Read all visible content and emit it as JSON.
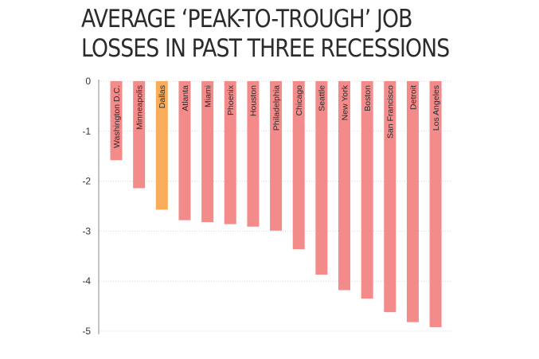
{
  "title_lines": [
    "Average ‘peak-to-trough’ job",
    "losses in past three recessions"
  ],
  "colors": {
    "bar": "#f48b8b",
    "highlight": "#f9ad5a",
    "grid": "#d7d7d7",
    "axis": "#888888"
  },
  "chart_data": {
    "type": "bar",
    "title": "Average ‘peak-to-trough’ job losses in past three recessions",
    "xlabel": "",
    "ylabel": "",
    "ylim": [
      -5,
      0
    ],
    "yticks": [
      0,
      -1,
      -2,
      -3,
      -4,
      -5
    ],
    "categories": [
      "Washington D.C.",
      "Minneapolis",
      "Dallas",
      "Atlanta",
      "Miami",
      "Phoenix",
      "Houston",
      "Philadelphia",
      "Chicago",
      "Seattle",
      "New York",
      "Boston",
      "San Francisco",
      "Detroit",
      "Los Angeles"
    ],
    "values": [
      -1.58,
      -2.14,
      -2.57,
      -2.78,
      -2.82,
      -2.86,
      -2.91,
      -2.99,
      -3.36,
      -3.87,
      -4.18,
      -4.35,
      -4.62,
      -4.82,
      -4.92
    ],
    "highlight": "Dallas",
    "grid": true
  }
}
